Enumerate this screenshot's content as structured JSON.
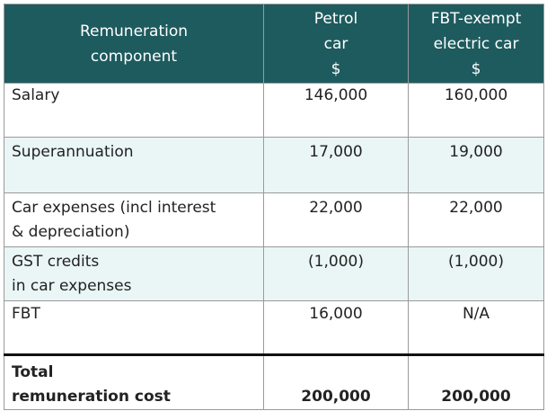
{
  "table": {
    "headers": [
      "Remuneration\ncomponent",
      "Petrol\ncar\n$",
      "FBT-exempt\nelectric car\n$"
    ],
    "rows": [
      {
        "label": "Salary",
        "petrol": "146,000",
        "electric": "160,000"
      },
      {
        "label": "Superannuation",
        "petrol": "17,000",
        "electric": "19,000"
      },
      {
        "label": "Car expenses (incl interest\n& depreciation)",
        "petrol": "22,000",
        "electric": "22,000"
      },
      {
        "label": "GST credits\nin car expenses",
        "petrol": "(1,000)",
        "electric": "(1,000)"
      },
      {
        "label": "FBT",
        "petrol": "16,000",
        "electric": "N/A"
      }
    ],
    "total": {
      "label": "Total\nremuneration cost",
      "petrol": "200,000",
      "electric": "200,000"
    }
  },
  "colors": {
    "header_bg": "#1e5b5e",
    "stripe_bg": "#eaf6f6"
  }
}
